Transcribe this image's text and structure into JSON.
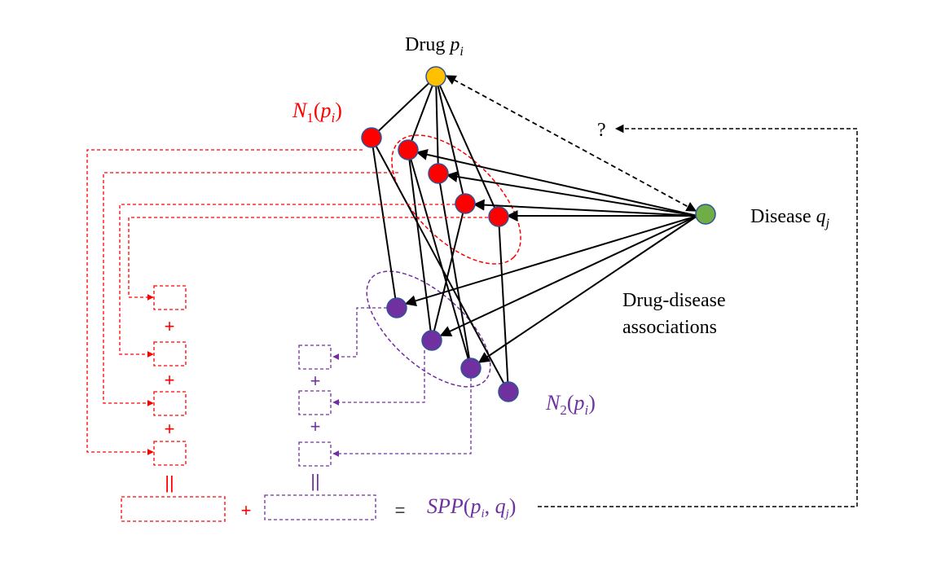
{
  "labels": {
    "drug": "Drug",
    "drug_var": "p",
    "drug_sub": "i",
    "disease": "Disease",
    "disease_var": "q",
    "disease_sub": "j",
    "question": "?",
    "assoc_line1": "Drug-disease",
    "assoc_line2": "associations",
    "n1": "N",
    "n1_index": "1",
    "n2": "N",
    "n2_index": "2",
    "neighbor_open": "(",
    "neighbor_var": "p",
    "neighbor_sub": "i",
    "neighbor_close": ")",
    "spp": "SPP",
    "spp_open": "(",
    "spp_p": "p",
    "spp_i": "i",
    "spp_comma": ", ",
    "spp_q": "q",
    "spp_j": "j",
    "spp_close": ")"
  },
  "operators": {
    "plus": "+",
    "equals": "=",
    "parallel": "||"
  },
  "colors": {
    "drug_node": "#ffc000",
    "disease_node": "#70ad47",
    "first_order": "#ff0000",
    "second_order": "#7030a0",
    "node_outline": "#2f5597",
    "edge": "#000000"
  }
}
